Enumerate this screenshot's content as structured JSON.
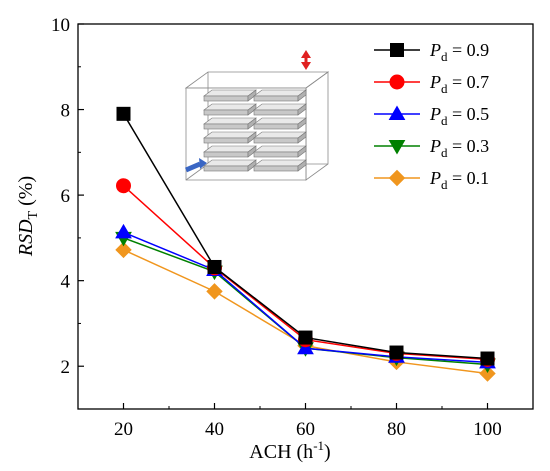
{
  "chart_data": {
    "type": "line",
    "xlabel_main": "ACH (h",
    "xlabel_sup": "-1",
    "xlabel_close": ")",
    "ylabel_main": "RSD",
    "ylabel_sub": "T",
    "ylabel_unit": " (%)",
    "xlim": [
      10,
      110
    ],
    "ylim": [
      1,
      10
    ],
    "x": [
      20,
      40,
      60,
      80,
      100
    ],
    "x_ticks": [
      "20",
      "40",
      "60",
      "80",
      "100"
    ],
    "y_ticks": [
      "2",
      "4",
      "6",
      "8",
      "10"
    ],
    "legend_position": "top-right",
    "grid": false,
    "inset": "schematic of a ventilated room with rows of shelves; blue inlet arrow at lower left, red outlet arrow at top right",
    "series": [
      {
        "name_var": "P",
        "name_sub": "d",
        "name_val": " = 0.9",
        "color": "#000000",
        "marker": "square",
        "values": [
          7.9,
          4.32,
          2.67,
          2.32,
          2.18
        ]
      },
      {
        "name_var": "P",
        "name_sub": "d",
        "name_val": " = 0.7",
        "color": "#ff0000",
        "marker": "circle",
        "values": [
          6.22,
          4.3,
          2.62,
          2.3,
          2.16
        ]
      },
      {
        "name_var": "P",
        "name_sub": "d",
        "name_val": " = 0.5",
        "color": "#0000ff",
        "marker": "triangle-up",
        "values": [
          5.13,
          4.25,
          2.42,
          2.22,
          2.09
        ]
      },
      {
        "name_var": "P",
        "name_sub": "d",
        "name_val": " = 0.3",
        "color": "#008000",
        "marker": "triangle-down",
        "values": [
          5.0,
          4.21,
          2.42,
          2.2,
          2.04
        ]
      },
      {
        "name_var": "P",
        "name_sub": "d",
        "name_val": " = 0.1",
        "color": "#f0961e",
        "marker": "diamond",
        "values": [
          4.72,
          3.75,
          2.48,
          2.1,
          1.83
        ]
      }
    ]
  }
}
